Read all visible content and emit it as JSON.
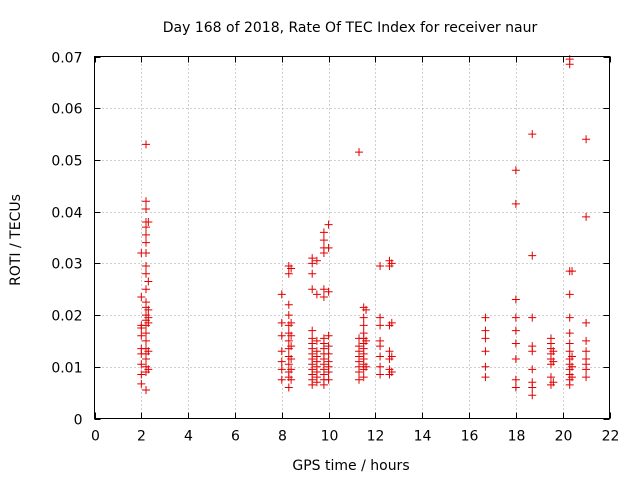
{
  "chart_data": {
    "type": "scatter",
    "title": "Day 168 of 2018, Rate Of TEC Index for receiver naur",
    "xlabel": "GPS time / hours",
    "ylabel": "ROTI / TECUs",
    "xlim": [
      0,
      22
    ],
    "ylim": [
      0,
      0.07
    ],
    "xticks": [
      0,
      2,
      4,
      6,
      8,
      10,
      12,
      14,
      16,
      18,
      20,
      22
    ],
    "xtick_labels": [
      "0",
      "2",
      "4",
      "6",
      "8",
      "10",
      "12",
      "14",
      "16",
      "18",
      "20",
      "22"
    ],
    "yticks": [
      0,
      0.01,
      0.02,
      0.03,
      0.04,
      0.05,
      0.06,
      0.07
    ],
    "ytick_labels": [
      "0",
      "0.01",
      "0.02",
      "0.03",
      "0.04",
      "0.05",
      "0.06",
      "0.07"
    ],
    "grid": true,
    "marker": "+",
    "color": "#e00000",
    "series": [
      {
        "name": "ROTI",
        "points": [
          [
            2.0,
            0.0067
          ],
          [
            2.0,
            0.0085
          ],
          [
            2.0,
            0.0105
          ],
          [
            2.0,
            0.0125
          ],
          [
            2.0,
            0.0135
          ],
          [
            2.0,
            0.016
          ],
          [
            2.0,
            0.0175
          ],
          [
            2.0,
            0.018
          ],
          [
            2.0,
            0.0235
          ],
          [
            2.0,
            0.032
          ],
          [
            2.2,
            0.0055
          ],
          [
            2.2,
            0.009
          ],
          [
            2.2,
            0.01
          ],
          [
            2.2,
            0.0115
          ],
          [
            2.2,
            0.0125
          ],
          [
            2.2,
            0.0135
          ],
          [
            2.2,
            0.015
          ],
          [
            2.2,
            0.0165
          ],
          [
            2.2,
            0.018
          ],
          [
            2.2,
            0.019
          ],
          [
            2.2,
            0.02
          ],
          [
            2.2,
            0.0215
          ],
          [
            2.2,
            0.0225
          ],
          [
            2.2,
            0.025
          ],
          [
            2.2,
            0.028
          ],
          [
            2.2,
            0.0295
          ],
          [
            2.2,
            0.032
          ],
          [
            2.2,
            0.034
          ],
          [
            2.2,
            0.0355
          ],
          [
            2.2,
            0.037
          ],
          [
            2.2,
            0.038
          ],
          [
            2.2,
            0.0405
          ],
          [
            2.2,
            0.042
          ],
          [
            2.2,
            0.053
          ],
          [
            2.3,
            0.0095
          ],
          [
            2.3,
            0.013
          ],
          [
            2.3,
            0.0185
          ],
          [
            2.3,
            0.0195
          ],
          [
            2.3,
            0.021
          ],
          [
            2.3,
            0.0265
          ],
          [
            2.3,
            0.038
          ],
          [
            8.0,
            0.0075
          ],
          [
            8.0,
            0.0095
          ],
          [
            8.0,
            0.011
          ],
          [
            8.0,
            0.013
          ],
          [
            8.0,
            0.016
          ],
          [
            8.0,
            0.0185
          ],
          [
            8.0,
            0.024
          ],
          [
            8.3,
            0.006
          ],
          [
            8.3,
            0.008
          ],
          [
            8.3,
            0.009
          ],
          [
            8.3,
            0.0105
          ],
          [
            8.3,
            0.012
          ],
          [
            8.3,
            0.0135
          ],
          [
            8.3,
            0.015
          ],
          [
            8.3,
            0.0165
          ],
          [
            8.3,
            0.018
          ],
          [
            8.3,
            0.02
          ],
          [
            8.3,
            0.022
          ],
          [
            8.3,
            0.028
          ],
          [
            8.3,
            0.0295
          ],
          [
            8.4,
            0.0075
          ],
          [
            8.4,
            0.0095
          ],
          [
            8.4,
            0.0115
          ],
          [
            8.4,
            0.014
          ],
          [
            8.4,
            0.016
          ],
          [
            8.4,
            0.0185
          ],
          [
            8.4,
            0.029
          ],
          [
            9.3,
            0.0065
          ],
          [
            9.3,
            0.0075
          ],
          [
            9.3,
            0.0085
          ],
          [
            9.3,
            0.0095
          ],
          [
            9.3,
            0.0105
          ],
          [
            9.3,
            0.0115
          ],
          [
            9.3,
            0.0125
          ],
          [
            9.3,
            0.0135
          ],
          [
            9.3,
            0.0145
          ],
          [
            9.3,
            0.0155
          ],
          [
            9.3,
            0.017
          ],
          [
            9.3,
            0.025
          ],
          [
            9.3,
            0.028
          ],
          [
            9.3,
            0.03
          ],
          [
            9.3,
            0.031
          ],
          [
            9.5,
            0.007
          ],
          [
            9.5,
            0.008
          ],
          [
            9.5,
            0.009
          ],
          [
            9.5,
            0.01
          ],
          [
            9.5,
            0.011
          ],
          [
            9.5,
            0.012
          ],
          [
            9.5,
            0.013
          ],
          [
            9.5,
            0.015
          ],
          [
            9.5,
            0.024
          ],
          [
            9.5,
            0.0305
          ],
          [
            9.8,
            0.0065
          ],
          [
            9.8,
            0.0075
          ],
          [
            9.8,
            0.0085
          ],
          [
            9.8,
            0.0095
          ],
          [
            9.8,
            0.0105
          ],
          [
            9.8,
            0.0115
          ],
          [
            9.8,
            0.0125
          ],
          [
            9.8,
            0.0135
          ],
          [
            9.8,
            0.0145
          ],
          [
            9.8,
            0.0155
          ],
          [
            9.8,
            0.0235
          ],
          [
            9.8,
            0.025
          ],
          [
            9.8,
            0.032
          ],
          [
            9.8,
            0.033
          ],
          [
            9.8,
            0.0345
          ],
          [
            9.8,
            0.036
          ],
          [
            10.0,
            0.0075
          ],
          [
            10.0,
            0.009
          ],
          [
            10.0,
            0.01
          ],
          [
            10.0,
            0.011
          ],
          [
            10.0,
            0.0125
          ],
          [
            10.0,
            0.014
          ],
          [
            10.0,
            0.016
          ],
          [
            10.0,
            0.0245
          ],
          [
            10.0,
            0.033
          ],
          [
            10.0,
            0.0375
          ],
          [
            11.3,
            0.0075
          ],
          [
            11.3,
            0.009
          ],
          [
            11.3,
            0.01
          ],
          [
            11.3,
            0.011
          ],
          [
            11.3,
            0.012
          ],
          [
            11.3,
            0.013
          ],
          [
            11.3,
            0.014
          ],
          [
            11.3,
            0.0155
          ],
          [
            11.3,
            0.0515
          ],
          [
            11.5,
            0.008
          ],
          [
            11.5,
            0.0095
          ],
          [
            11.5,
            0.0105
          ],
          [
            11.5,
            0.0115
          ],
          [
            11.5,
            0.0125
          ],
          [
            11.5,
            0.0135
          ],
          [
            11.5,
            0.0145
          ],
          [
            11.5,
            0.0155
          ],
          [
            11.5,
            0.0165
          ],
          [
            11.5,
            0.018
          ],
          [
            11.5,
            0.0195
          ],
          [
            11.5,
            0.0215
          ],
          [
            11.6,
            0.01
          ],
          [
            11.6,
            0.015
          ],
          [
            11.6,
            0.021
          ],
          [
            12.2,
            0.0085
          ],
          [
            12.2,
            0.01
          ],
          [
            12.2,
            0.012
          ],
          [
            12.2,
            0.014
          ],
          [
            12.2,
            0.015
          ],
          [
            12.2,
            0.018
          ],
          [
            12.2,
            0.0195
          ],
          [
            12.2,
            0.0295
          ],
          [
            12.6,
            0.0085
          ],
          [
            12.6,
            0.0095
          ],
          [
            12.6,
            0.0115
          ],
          [
            12.6,
            0.013
          ],
          [
            12.6,
            0.018
          ],
          [
            12.6,
            0.0295
          ],
          [
            12.6,
            0.0305
          ],
          [
            12.7,
            0.009
          ],
          [
            12.7,
            0.012
          ],
          [
            12.7,
            0.0185
          ],
          [
            12.7,
            0.03
          ],
          [
            16.7,
            0.008
          ],
          [
            16.7,
            0.01
          ],
          [
            16.7,
            0.013
          ],
          [
            16.7,
            0.0155
          ],
          [
            16.7,
            0.017
          ],
          [
            16.7,
            0.0195
          ],
          [
            18.0,
            0.006
          ],
          [
            18.0,
            0.0075
          ],
          [
            18.0,
            0.0115
          ],
          [
            18.0,
            0.0145
          ],
          [
            18.0,
            0.017
          ],
          [
            18.0,
            0.0195
          ],
          [
            18.0,
            0.023
          ],
          [
            18.0,
            0.0415
          ],
          [
            18.0,
            0.048
          ],
          [
            18.7,
            0.0045
          ],
          [
            18.7,
            0.006
          ],
          [
            18.7,
            0.007
          ],
          [
            18.7,
            0.0095
          ],
          [
            18.7,
            0.013
          ],
          [
            18.7,
            0.014
          ],
          [
            18.7,
            0.0195
          ],
          [
            18.7,
            0.0315
          ],
          [
            18.7,
            0.055
          ],
          [
            19.5,
            0.0065
          ],
          [
            19.5,
            0.008
          ],
          [
            19.5,
            0.0105
          ],
          [
            19.5,
            0.0115
          ],
          [
            19.5,
            0.0125
          ],
          [
            19.5,
            0.0135
          ],
          [
            19.5,
            0.0145
          ],
          [
            19.5,
            0.0155
          ],
          [
            19.6,
            0.007
          ],
          [
            19.6,
            0.011
          ],
          [
            19.6,
            0.013
          ],
          [
            20.3,
            0.0065
          ],
          [
            20.3,
            0.0075
          ],
          [
            20.3,
            0.0085
          ],
          [
            20.3,
            0.0095
          ],
          [
            20.3,
            0.0105
          ],
          [
            20.3,
            0.0115
          ],
          [
            20.3,
            0.013
          ],
          [
            20.3,
            0.0145
          ],
          [
            20.3,
            0.0165
          ],
          [
            20.3,
            0.0195
          ],
          [
            20.3,
            0.024
          ],
          [
            20.3,
            0.0285
          ],
          [
            20.3,
            0.0685
          ],
          [
            20.3,
            0.0695
          ],
          [
            20.4,
            0.008
          ],
          [
            20.4,
            0.01
          ],
          [
            20.4,
            0.012
          ],
          [
            20.4,
            0.0285
          ],
          [
            21.0,
            0.008
          ],
          [
            21.0,
            0.0095
          ],
          [
            21.0,
            0.0105
          ],
          [
            21.0,
            0.0115
          ],
          [
            21.0,
            0.013
          ],
          [
            21.0,
            0.015
          ],
          [
            21.0,
            0.0185
          ],
          [
            21.0,
            0.039
          ],
          [
            21.0,
            0.054
          ]
        ]
      }
    ]
  }
}
